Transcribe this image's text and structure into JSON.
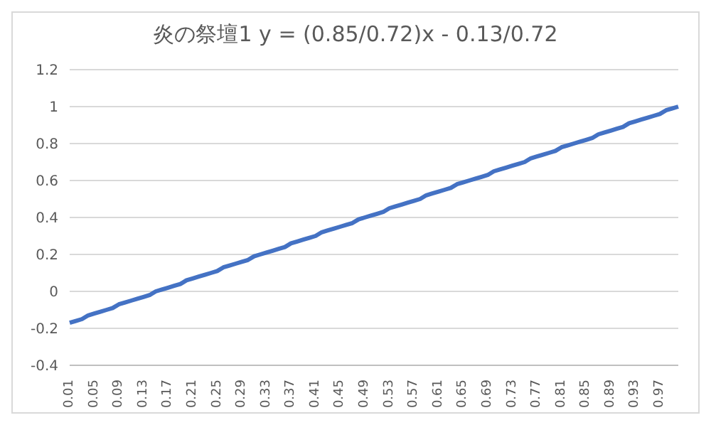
{
  "chart_data": {
    "type": "line",
    "title": "炎の祭壇1  y = (0.85/0.72)x - 0.13/0.72",
    "categories": [
      "0.01",
      null,
      null,
      null,
      "0.05",
      null,
      null,
      null,
      "0.09",
      null,
      null,
      null,
      "0.13",
      null,
      null,
      null,
      "0.17",
      null,
      null,
      null,
      "0.21",
      null,
      null,
      null,
      "0.25",
      null,
      null,
      null,
      "0.29",
      null,
      null,
      null,
      "0.33",
      null,
      null,
      null,
      "0.37",
      null,
      null,
      null,
      "0.41",
      null,
      null,
      null,
      "0.45",
      null,
      null,
      null,
      "0.49",
      null,
      null,
      null,
      "0.53",
      null,
      null,
      null,
      "0.57",
      null,
      null,
      null,
      "0.61",
      null,
      null,
      null,
      "0.65",
      null,
      null,
      null,
      "0.69",
      null,
      null,
      null,
      "0.73",
      null,
      null,
      null,
      "0.77",
      null,
      null,
      null,
      "0.81",
      null,
      null,
      null,
      "0.85",
      null,
      null,
      null,
      "0.89",
      null,
      null,
      null,
      "0.93",
      null,
      null,
      null,
      "0.97",
      null,
      null,
      null
    ],
    "series": [
      {
        "color": "#4472c4",
        "values": [
          -0.17,
          -0.16,
          -0.15,
          -0.13,
          -0.12,
          -0.11,
          -0.1,
          -0.09,
          -0.07,
          -0.06,
          -0.05,
          -0.04,
          -0.03,
          -0.02,
          0,
          0.01,
          0.02,
          0.03,
          0.04,
          0.06,
          0.07,
          0.08,
          0.09,
          0.1,
          0.11,
          0.13,
          0.14,
          0.15,
          0.16,
          0.17,
          0.19,
          0.2,
          0.21,
          0.22,
          0.23,
          0.24,
          0.26,
          0.27,
          0.28,
          0.29,
          0.3,
          0.32,
          0.33,
          0.34,
          0.35,
          0.36,
          0.37,
          0.39,
          0.4,
          0.41,
          0.42,
          0.43,
          0.45,
          0.46,
          0.47,
          0.48,
          0.49,
          0.5,
          0.52,
          0.53,
          0.54,
          0.55,
          0.56,
          0.58,
          0.59,
          0.6,
          0.61,
          0.62,
          0.63,
          0.65,
          0.66,
          0.67,
          0.68,
          0.69,
          0.7,
          0.72,
          0.73,
          0.74,
          0.75,
          0.76,
          0.78,
          0.79,
          0.8,
          0.81,
          0.82,
          0.83,
          0.85,
          0.86,
          0.87,
          0.88,
          0.89,
          0.91,
          0.92,
          0.93,
          0.94,
          0.95,
          0.96,
          0.98,
          0.99,
          1.0
        ]
      }
    ],
    "ylim": [
      -0.4,
      1.2
    ],
    "yticks": [
      -0.4,
      -0.2,
      0,
      0.2,
      0.4,
      0.6,
      0.8,
      1,
      1.2
    ],
    "grid": "y",
    "marker": "none",
    "line_style": "solid"
  }
}
